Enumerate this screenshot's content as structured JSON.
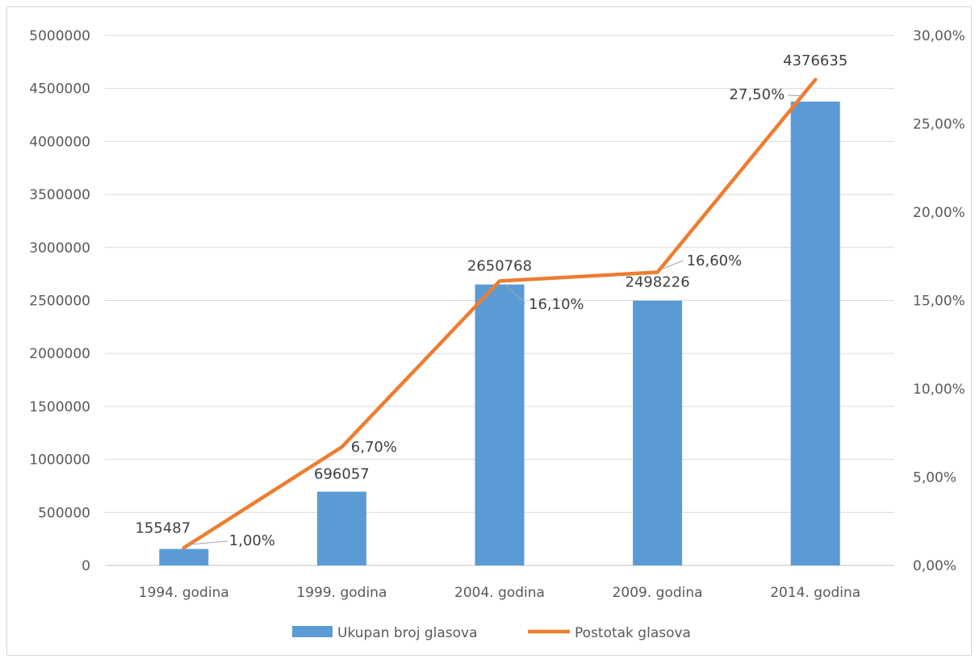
{
  "chart_data": {
    "type": "bar+line",
    "title": "",
    "categories": [
      "1994. godina",
      "1999. godina",
      "2004. godina",
      "2009. godina",
      "2014. godina"
    ],
    "series": [
      {
        "name": "Ukupan broj glasova",
        "kind": "bar",
        "axis": "left",
        "color": "#5B9BD5",
        "values": [
          155487,
          696057,
          2650768,
          2498226,
          4376635
        ],
        "labels": [
          "155487",
          "696057",
          "2650768",
          "2498226",
          "4376635"
        ]
      },
      {
        "name": "Postotak glasova",
        "kind": "line",
        "axis": "right",
        "color": "#ED7D31",
        "values": [
          1.0,
          6.7,
          16.1,
          16.6,
          27.5
        ],
        "labels": [
          "1,00%",
          "6,70%",
          "16,10%",
          "16,60%",
          "27,50%"
        ]
      }
    ],
    "left_axis": {
      "ylim": [
        0,
        5000000
      ],
      "ticks": [
        "0",
        "500000",
        "1000000",
        "1500000",
        "2000000",
        "2500000",
        "3000000",
        "3500000",
        "4000000",
        "4500000",
        "5000000"
      ]
    },
    "right_axis": {
      "ylim": [
        0,
        30
      ],
      "ticks": [
        "0,00%",
        "5,00%",
        "10,00%",
        "15,00%",
        "20,00%",
        "25,00%",
        "30,00%"
      ]
    },
    "grid": true,
    "legend_position": "bottom"
  }
}
